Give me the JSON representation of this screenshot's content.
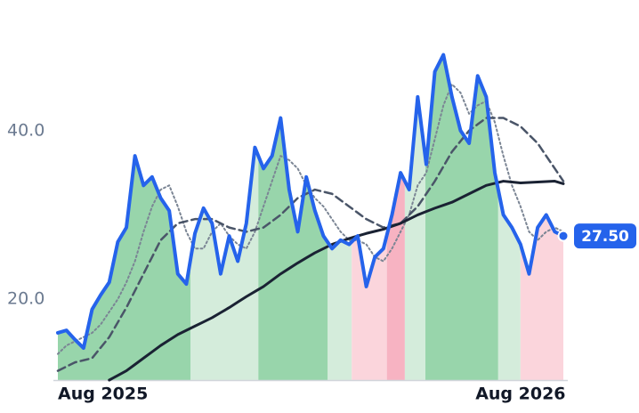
{
  "chart_data": {
    "type": "line",
    "x": [
      0,
      1,
      2,
      3,
      4,
      5,
      6,
      7,
      8,
      9,
      10,
      11,
      12,
      13,
      14,
      15,
      16,
      17,
      18,
      19,
      20,
      21,
      22,
      23,
      24,
      25,
      26,
      27,
      28,
      29,
      30,
      31,
      32,
      33,
      34,
      35,
      36,
      37,
      38,
      39,
      40,
      41,
      42,
      43,
      44,
      45,
      46,
      47,
      48,
      49,
      50,
      51,
      52,
      53,
      54,
      55,
      56,
      57,
      58,
      59
    ],
    "xlim": [
      0,
      59
    ],
    "xticks": [
      {
        "value": 0,
        "label": "Aug 2025"
      },
      {
        "value": 54,
        "label": "Aug 2026"
      }
    ],
    "ylim": [
      10.4,
      55.5
    ],
    "yticks": [
      {
        "value": 20,
        "label": "20.0"
      },
      {
        "value": 40,
        "label": "40.0"
      }
    ],
    "grid": false,
    "regions": [
      {
        "from": 0,
        "to": 15.5,
        "color": "#98d5ab"
      },
      {
        "from": 15.5,
        "to": 23.4,
        "color": "#d4ecdb"
      },
      {
        "from": 23.4,
        "to": 31.5,
        "color": "#98d5ab"
      },
      {
        "from": 31.5,
        "to": 34.3,
        "color": "#d4ecdb"
      },
      {
        "from": 34.3,
        "to": 38.4,
        "color": "#fbd5dc"
      },
      {
        "from": 38.4,
        "to": 40.5,
        "color": "#f7b3c2"
      },
      {
        "from": 40.5,
        "to": 42.9,
        "color": "#d4ecdb"
      },
      {
        "from": 42.9,
        "to": 51.4,
        "color": "#98d5ab"
      },
      {
        "from": 51.4,
        "to": 54,
        "color": "#d4ecdb"
      },
      {
        "from": 54,
        "to": 59,
        "color": "#fbd5dc"
      }
    ],
    "series": [
      {
        "color": "#7b8594",
        "style": "dotted",
        "width": 2,
        "values": [
          13.5,
          14.5,
          15,
          15.5,
          16,
          17,
          18.5,
          20,
          22,
          24.5,
          28,
          31,
          33,
          33.5,
          31,
          28,
          26,
          26,
          28,
          29,
          27.5,
          26.5,
          26,
          28,
          31,
          34,
          37,
          36.5,
          35.5,
          33.5,
          32,
          31,
          29.5,
          28,
          27,
          27,
          26.5,
          25,
          24.5,
          26,
          28,
          30,
          33.5,
          35,
          39,
          43,
          45.5,
          44.5,
          42,
          43,
          43.5,
          41,
          37,
          33.5,
          31,
          28,
          27,
          28,
          28.5,
          28
        ]
      },
      {
        "color": "#4a5568",
        "style": "dashed",
        "width": 2.5,
        "values": [
          11.5,
          12,
          12.5,
          12.75,
          13,
          14.25,
          15.5,
          17.25,
          19,
          21,
          23,
          25,
          27,
          28,
          29,
          29.25,
          29.5,
          29.5,
          29.5,
          29,
          28.5,
          28.25,
          28,
          28.25,
          28.5,
          29.25,
          30,
          31,
          32,
          32.5,
          33,
          32.75,
          32.5,
          31.75,
          31,
          30.25,
          29.5,
          29,
          28.5,
          28.75,
          29,
          30,
          31,
          32.5,
          34,
          35.75,
          37.5,
          38.75,
          40,
          40.75,
          41.5,
          41.5,
          41.5,
          41,
          40.5,
          39.5,
          38.5,
          37,
          35.5,
          34
        ]
      },
      {
        "color": "#1a2233",
        "style": "solid",
        "width": 3,
        "values": [
          null,
          null,
          null,
          null,
          null,
          null,
          10.4,
          10.95,
          11.5,
          12.25,
          13,
          13.75,
          14.5,
          15.15,
          15.8,
          16.3,
          16.8,
          17.3,
          17.8,
          18.4,
          19,
          19.65,
          20.3,
          20.9,
          21.5,
          22.25,
          23,
          23.65,
          24.3,
          24.9,
          25.5,
          26,
          26.5,
          26.85,
          27.2,
          27.5,
          27.8,
          28.05,
          28.3,
          28.65,
          29,
          29.5,
          30,
          30.4,
          30.8,
          31.15,
          31.5,
          32,
          32.5,
          33,
          33.5,
          33.75,
          34,
          33.9,
          33.8,
          33.85,
          33.9,
          33.95,
          34,
          33.7
        ]
      },
      {
        "color": "#2563eb",
        "style": "solid",
        "width": 4,
        "fill_regions": true,
        "values": [
          16,
          16.3,
          15.2,
          14.2,
          18.8,
          20.5,
          22,
          26.8,
          28.5,
          37,
          33.5,
          34.5,
          32,
          30.5,
          23,
          21.8,
          27.8,
          30.8,
          29,
          23,
          27.5,
          24.5,
          29,
          38,
          35.5,
          37,
          41.5,
          33,
          28,
          34.5,
          30.5,
          27.5,
          26,
          27,
          26.5,
          27.5,
          21.5,
          25,
          26,
          30,
          35,
          33,
          44,
          36,
          47,
          49,
          44,
          40,
          38.5,
          46.5,
          44,
          35,
          30,
          28.5,
          26.5,
          23,
          28.5,
          30,
          28,
          27.5
        ],
        "value_labels": [
          null,
          null,
          null,
          null,
          null,
          null,
          null,
          null,
          null,
          null,
          null,
          null,
          null,
          null,
          null,
          null,
          null,
          null,
          null,
          null,
          null,
          null,
          null,
          null,
          null,
          null,
          null,
          null,
          null,
          null,
          null,
          null,
          null,
          null,
          null,
          null,
          null,
          null,
          null,
          null,
          null,
          null,
          null,
          null,
          null,
          null,
          null,
          null,
          null,
          null,
          null,
          null,
          null,
          null,
          null,
          null,
          null,
          null,
          null,
          "27.50"
        ]
      }
    ]
  }
}
